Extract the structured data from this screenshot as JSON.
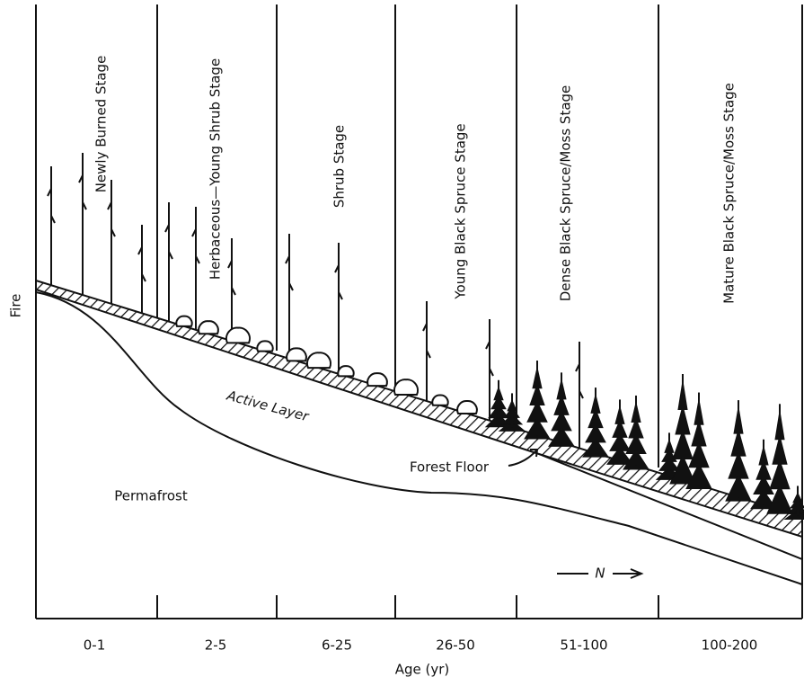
{
  "side_label": "Fire",
  "x_axis_title": "Age (yr)",
  "stages": [
    {
      "label": "Newly Burned Stage",
      "age": "0-1"
    },
    {
      "label": "Herbaceous—Young Shrub Stage",
      "age": "2-5"
    },
    {
      "label": "Shrub Stage",
      "age": "6-25"
    },
    {
      "label": "Young Black Spruce Stage",
      "age": "26-50"
    },
    {
      "label": "Dense Black Spruce/Moss Stage",
      "age": "51-100"
    },
    {
      "label": "Mature Black Spruce/Moss Stage",
      "age": "100-200"
    }
  ],
  "labels": {
    "active_layer": "Active Layer",
    "permafrost": "Permafrost",
    "forest_floor": "Forest Floor",
    "north": "N"
  }
}
